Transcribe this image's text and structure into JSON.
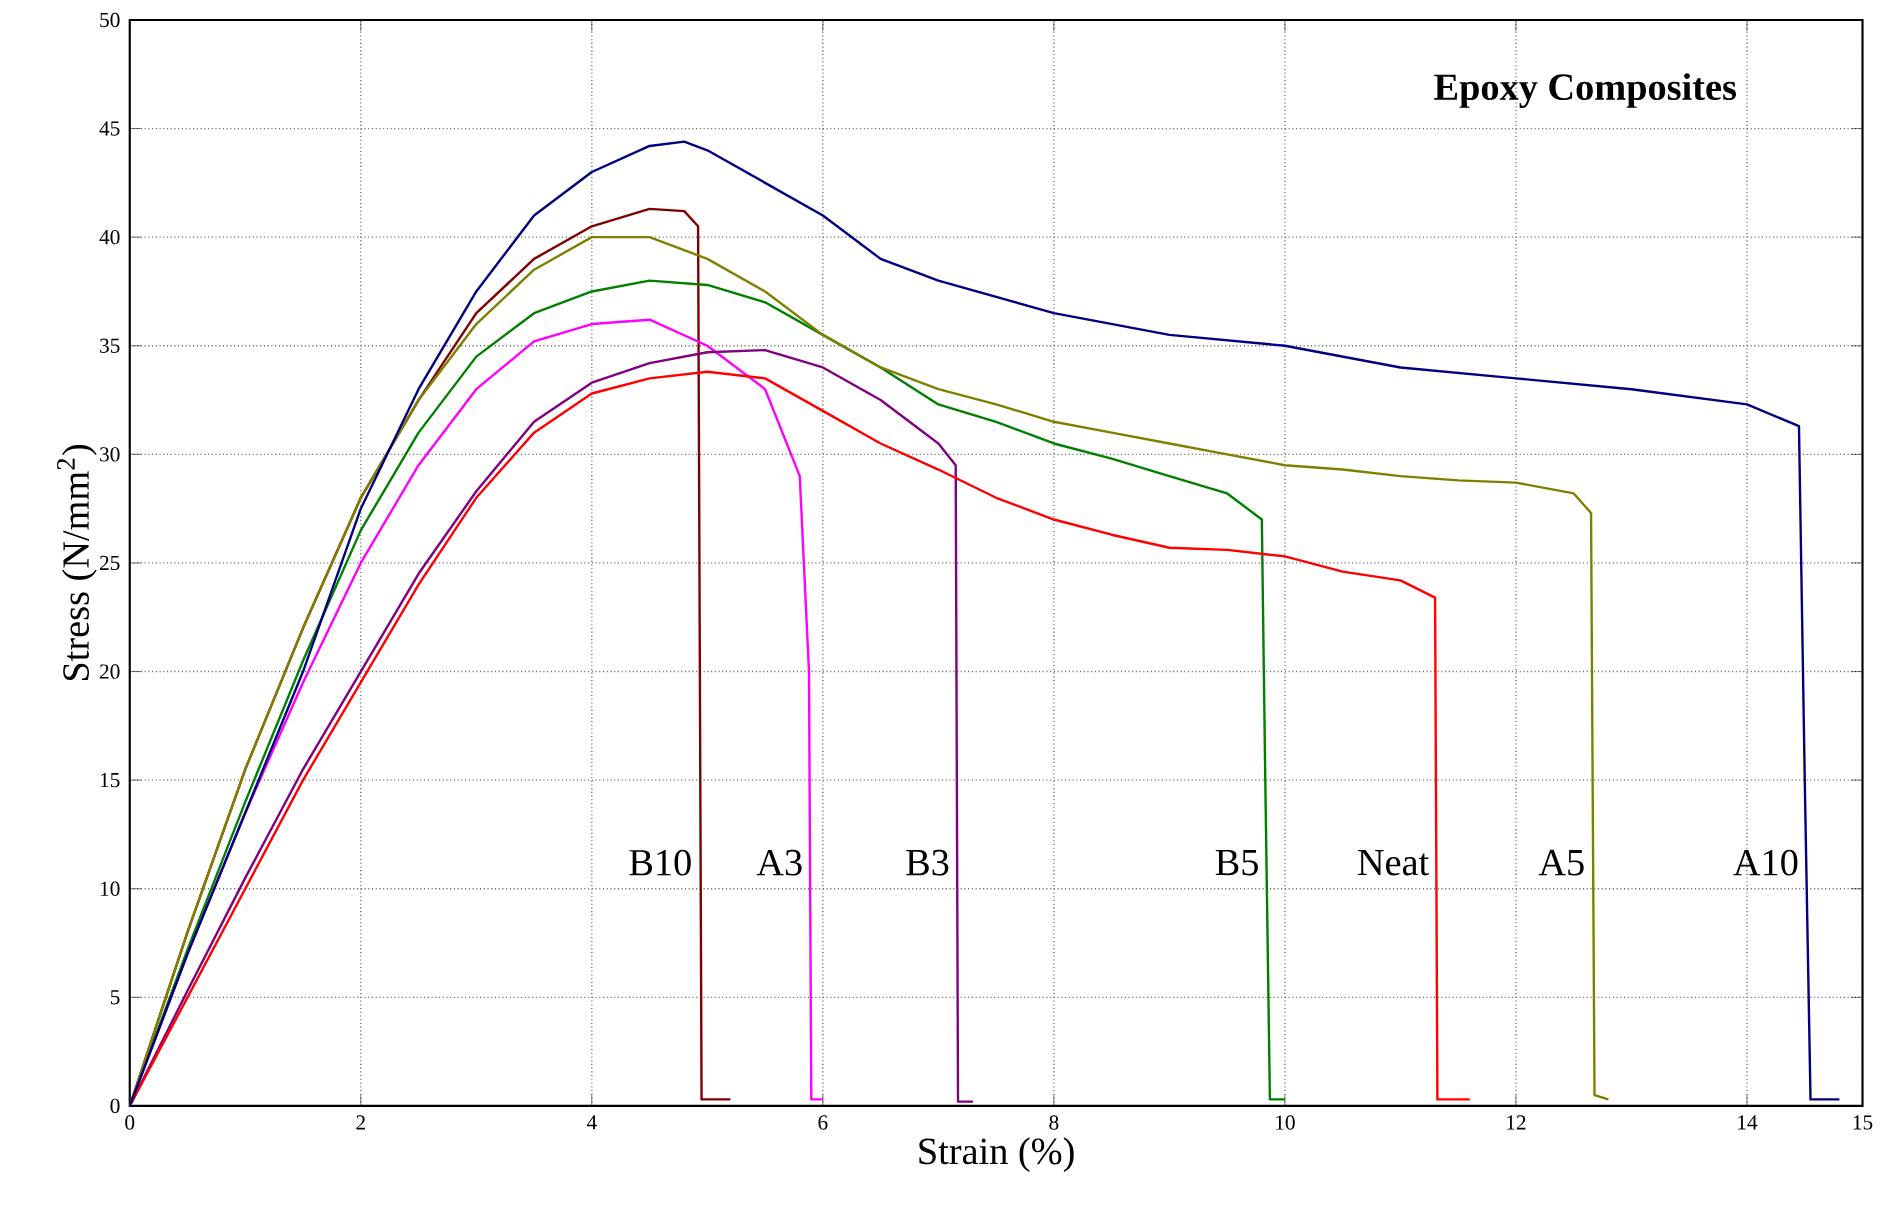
{
  "chart_data": {
    "type": "line",
    "xlabel": "Strain (%)",
    "ylabel": "Stress (N/mm$^{2}$)",
    "annotations": [
      "Epoxy Composites"
    ],
    "xlim": [
      0,
      15
    ],
    "ylim": [
      0,
      50
    ],
    "xticks": [
      0,
      2,
      4,
      6,
      8,
      10,
      12,
      14,
      15
    ],
    "yticks": [
      0,
      5,
      10,
      15,
      20,
      25,
      30,
      35,
      40,
      45,
      50
    ],
    "grid": true,
    "legend": false,
    "marker": "none",
    "line_style": "solid",
    "series": [
      {
        "name": "B10",
        "color": "#800000",
        "x": [
          0,
          0.5,
          1,
          1.5,
          2,
          2.5,
          3,
          3.5,
          4,
          4.5,
          4.8,
          4.92,
          4.95,
          5.2
        ],
        "values": [
          0,
          8,
          15.5,
          22,
          28,
          32.5,
          36.5,
          39,
          40.5,
          41.3,
          41.2,
          40.5,
          0.3,
          0.3
        ]
      },
      {
        "name": "A3",
        "color": "#ff00ff",
        "x": [
          0,
          0.5,
          1,
          1.5,
          2,
          2.5,
          3,
          3.5,
          4,
          4.5,
          5,
          5.5,
          5.8,
          5.88,
          5.9,
          6
        ],
        "values": [
          0,
          7,
          13.5,
          19.5,
          25,
          29.5,
          33,
          35.2,
          36,
          36.2,
          35,
          33,
          29,
          20,
          0.3,
          0.3
        ]
      },
      {
        "name": "B3",
        "color": "#800080",
        "x": [
          0,
          0.5,
          1,
          1.5,
          2,
          2.5,
          3,
          3.5,
          4,
          4.5,
          5,
          5.5,
          6,
          6.5,
          7,
          7.15,
          7.17,
          7.3
        ],
        "values": [
          0,
          5.3,
          10.5,
          15.5,
          20,
          24.5,
          28.3,
          31.5,
          33.3,
          34.2,
          34.7,
          34.8,
          34,
          32.5,
          30.5,
          29.5,
          0.2,
          0.2
        ]
      },
      {
        "name": "B5",
        "color": "#008000",
        "x": [
          0,
          0.5,
          1,
          1.5,
          2,
          2.5,
          3,
          3.5,
          4,
          4.5,
          5,
          5.5,
          6,
          6.5,
          7,
          7.5,
          8,
          8.5,
          9,
          9.5,
          9.8,
          9.83,
          9.87,
          10
        ],
        "values": [
          0,
          7.2,
          14,
          20.5,
          26.5,
          31,
          34.5,
          36.5,
          37.5,
          38,
          37.8,
          37,
          35.5,
          34,
          32.3,
          31.5,
          30.5,
          29.8,
          29,
          28.2,
          27,
          15,
          0.3,
          0.3
        ]
      },
      {
        "name": "Neat",
        "color": "#ff0000",
        "x": [
          0,
          0.5,
          1,
          1.5,
          2,
          2.5,
          3,
          3.5,
          4,
          4.5,
          5,
          5.5,
          6,
          6.5,
          7,
          7.5,
          8,
          8.5,
          9,
          9.5,
          10,
          10.5,
          11,
          11.3,
          11.32,
          11.6
        ],
        "values": [
          0,
          5,
          10,
          15,
          19.5,
          24,
          28,
          31,
          32.8,
          33.5,
          33.8,
          33.5,
          32,
          30.5,
          29.3,
          28,
          27,
          26.3,
          25.7,
          25.6,
          25.3,
          24.6,
          24.2,
          23.4,
          0.3,
          0.3
        ]
      },
      {
        "name": "A5",
        "color": "#808000",
        "x": [
          0,
          0.5,
          1,
          1.5,
          2,
          2.5,
          3,
          3.5,
          4,
          4.5,
          5,
          5.5,
          6,
          6.5,
          7,
          7.5,
          8,
          8.5,
          9,
          9.5,
          10,
          10.5,
          11,
          11.5,
          12,
          12.5,
          12.65,
          12.68,
          12.8
        ],
        "values": [
          0,
          8,
          15.5,
          22,
          28,
          32.5,
          36,
          38.5,
          40,
          40,
          39,
          37.5,
          35.5,
          34,
          33,
          32.3,
          31.5,
          31,
          30.5,
          30,
          29.5,
          29.3,
          29,
          28.8,
          28.7,
          28.2,
          27.3,
          0.5,
          0.3
        ]
      },
      {
        "name": "A10",
        "color": "#000080",
        "x": [
          0,
          0.5,
          1,
          1.5,
          2,
          2.5,
          3,
          3.5,
          4,
          4.5,
          4.8,
          5,
          5.5,
          6,
          6.5,
          7,
          8,
          9,
          10,
          11,
          12,
          13,
          14,
          14.45,
          14.5,
          14.55,
          14.8
        ],
        "values": [
          0,
          7,
          13.5,
          20,
          27.5,
          33,
          37.5,
          41,
          43,
          44.2,
          44.4,
          44,
          42.5,
          41,
          39,
          38,
          36.5,
          35.5,
          35,
          34,
          33.5,
          33,
          32.3,
          31.3,
          15,
          0.3,
          0.3
        ]
      }
    ]
  }
}
